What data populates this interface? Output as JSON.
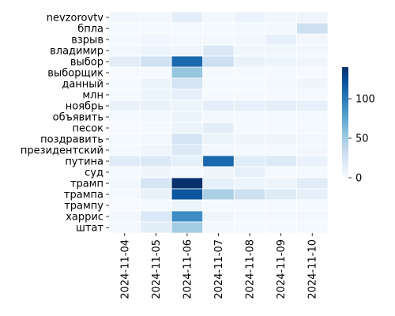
{
  "chart_data": {
    "type": "heatmap",
    "title": "",
    "xlabel": "",
    "ylabel": "",
    "rows": [
      "nevzorovtv",
      "бпла",
      "взрыв",
      "владимир",
      "выбор",
      "выборщик",
      "данный",
      "млн",
      "ноябрь",
      "объявить",
      "песок",
      "поздравить",
      "президентский",
      "путина",
      "суд",
      "трамп",
      "трампа",
      "трампу",
      "харрис",
      "штат"
    ],
    "columns": [
      "2024-11-04",
      "2024-11-05",
      "2024-11-06",
      "2024-11-07",
      "2024-11-08",
      "2024-11-09",
      "2024-11-10"
    ],
    "values": [
      [
        5,
        4,
        14,
        4,
        9,
        5,
        6
      ],
      [
        2,
        2,
        2,
        2,
        4,
        4,
        30
      ],
      [
        2,
        5,
        3,
        3,
        4,
        12,
        4
      ],
      [
        4,
        8,
        6,
        20,
        6,
        6,
        4
      ],
      [
        15,
        27,
        110,
        30,
        10,
        7,
        6
      ],
      [
        1,
        1,
        55,
        2,
        2,
        2,
        1
      ],
      [
        2,
        8,
        25,
        2,
        2,
        3,
        6
      ],
      [
        2,
        8,
        12,
        2,
        2,
        2,
        2
      ],
      [
        10,
        10,
        8,
        14,
        12,
        14,
        12
      ],
      [
        2,
        4,
        8,
        3,
        2,
        2,
        2
      ],
      [
        1,
        2,
        8,
        14,
        2,
        2,
        2
      ],
      [
        2,
        4,
        24,
        8,
        6,
        6,
        4
      ],
      [
        2,
        6,
        20,
        4,
        2,
        2,
        4
      ],
      [
        17,
        20,
        12,
        110,
        16,
        18,
        10
      ],
      [
        2,
        6,
        3,
        6,
        12,
        2,
        2
      ],
      [
        4,
        24,
        140,
        12,
        8,
        7,
        16
      ],
      [
        3,
        10,
        120,
        47,
        30,
        18,
        12
      ],
      [
        1,
        2,
        8,
        2,
        2,
        2,
        2
      ],
      [
        4,
        20,
        90,
        6,
        3,
        3,
        3
      ],
      [
        3,
        14,
        50,
        3,
        2,
        2,
        2
      ]
    ],
    "colorbar": {
      "min": 0,
      "max": 140,
      "ticks": [
        0,
        50,
        100
      ]
    },
    "colormap": [
      "#f7fbff",
      "#deebf7",
      "#c6dbef",
      "#9ecae1",
      "#6baed6",
      "#4292c6",
      "#2171b5",
      "#08519c",
      "#08306b"
    ]
  }
}
